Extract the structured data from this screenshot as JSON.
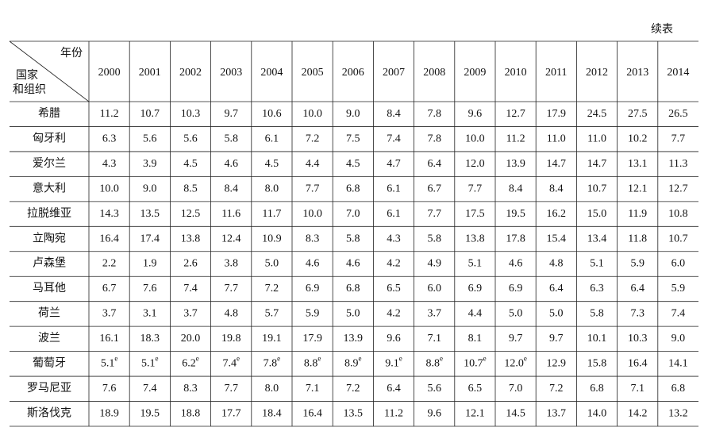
{
  "header": {
    "note": "续表"
  },
  "table": {
    "corner": {
      "col_label": "年份",
      "row_label_lines": [
        "国家",
        "和组织"
      ]
    },
    "columns": [
      "2000",
      "2001",
      "2002",
      "2003",
      "2004",
      "2005",
      "2006",
      "2007",
      "2008",
      "2009",
      "2010",
      "2011",
      "2012",
      "2013",
      "2014"
    ],
    "rows": [
      {
        "label": "希腊",
        "cells": [
          "11.2",
          "10.7",
          "10.3",
          "9.7",
          "10.6",
          "10.0",
          "9.0",
          "8.4",
          "7.8",
          "9.6",
          "12.7",
          "17.9",
          "24.5",
          "27.5",
          "26.5"
        ]
      },
      {
        "label": "匈牙利",
        "cells": [
          "6.3",
          "5.6",
          "5.6",
          "5.8",
          "6.1",
          "7.2",
          "7.5",
          "7.4",
          "7.8",
          "10.0",
          "11.2",
          "11.0",
          "11.0",
          "10.2",
          "7.7"
        ]
      },
      {
        "label": "爱尔兰",
        "cells": [
          "4.3",
          "3.9",
          "4.5",
          "4.6",
          "4.5",
          "4.4",
          "4.5",
          "4.7",
          "6.4",
          "12.0",
          "13.9",
          "14.7",
          "14.7",
          "13.1",
          "11.3"
        ]
      },
      {
        "label": "意大利",
        "cells": [
          "10.0",
          "9.0",
          "8.5",
          "8.4",
          "8.0",
          "7.7",
          "6.8",
          "6.1",
          "6.7",
          "7.7",
          "8.4",
          "8.4",
          "10.7",
          "12.1",
          "12.7"
        ]
      },
      {
        "label": "拉脱维亚",
        "cells": [
          "14.3",
          "13.5",
          "12.5",
          "11.6",
          "11.7",
          "10.0",
          "7.0",
          "6.1",
          "7.7",
          "17.5",
          "19.5",
          "16.2",
          "15.0",
          "11.9",
          "10.8"
        ]
      },
      {
        "label": "立陶宛",
        "cells": [
          "16.4",
          "17.4",
          "13.8",
          "12.4",
          "10.9",
          "8.3",
          "5.8",
          "4.3",
          "5.8",
          "13.8",
          "17.8",
          "15.4",
          "13.4",
          "11.8",
          "10.7"
        ]
      },
      {
        "label": "卢森堡",
        "cells": [
          "2.2",
          "1.9",
          "2.6",
          "3.8",
          "5.0",
          "4.6",
          "4.6",
          "4.2",
          "4.9",
          "5.1",
          "4.6",
          "4.8",
          "5.1",
          "5.9",
          "6.0"
        ]
      },
      {
        "label": "马耳他",
        "cells": [
          "6.7",
          "7.6",
          "7.4",
          "7.7",
          "7.2",
          "6.9",
          "6.8",
          "6.5",
          "6.0",
          "6.9",
          "6.9",
          "6.4",
          "6.3",
          "6.4",
          "5.9"
        ]
      },
      {
        "label": "荷兰",
        "cells": [
          "3.7",
          "3.1",
          "3.7",
          "4.8",
          "5.7",
          "5.9",
          "5.0",
          "4.2",
          "3.7",
          "4.4",
          "5.0",
          "5.0",
          "5.8",
          "7.3",
          "7.4"
        ]
      },
      {
        "label": "波兰",
        "cells": [
          "16.1",
          "18.3",
          "20.0",
          "19.8",
          "19.1",
          "17.9",
          "13.9",
          "9.6",
          "7.1",
          "8.1",
          "9.7",
          "9.7",
          "10.1",
          "10.3",
          "9.0"
        ]
      },
      {
        "label": "葡萄牙",
        "cells": [
          {
            "text": "5.1",
            "sup": "e"
          },
          {
            "text": "5.1",
            "sup": "e"
          },
          {
            "text": "6.2",
            "sup": "e"
          },
          {
            "text": "7.4",
            "sup": "e"
          },
          {
            "text": "7.8",
            "sup": "e"
          },
          {
            "text": "8.8",
            "sup": "e"
          },
          {
            "text": "8.9",
            "sup": "e"
          },
          {
            "text": "9.1",
            "sup": "e"
          },
          {
            "text": "8.8",
            "sup": "e"
          },
          {
            "text": "10.7",
            "sup": "e"
          },
          {
            "text": "12.0",
            "sup": "e"
          },
          "12.9",
          "15.8",
          "16.4",
          "14.1"
        ]
      },
      {
        "label": "罗马尼亚",
        "cells": [
          "7.6",
          "7.4",
          "8.3",
          "7.7",
          "8.0",
          "7.1",
          "7.2",
          "6.4",
          "5.6",
          "6.5",
          "7.0",
          "7.2",
          "6.8",
          "7.1",
          "6.8"
        ]
      },
      {
        "label": "斯洛伐克",
        "cells": [
          "18.9",
          "19.5",
          "18.8",
          "17.7",
          "18.4",
          "16.4",
          "13.5",
          "11.2",
          "9.6",
          "12.1",
          "14.5",
          "13.7",
          "14.0",
          "14.2",
          "13.2"
        ]
      }
    ]
  }
}
